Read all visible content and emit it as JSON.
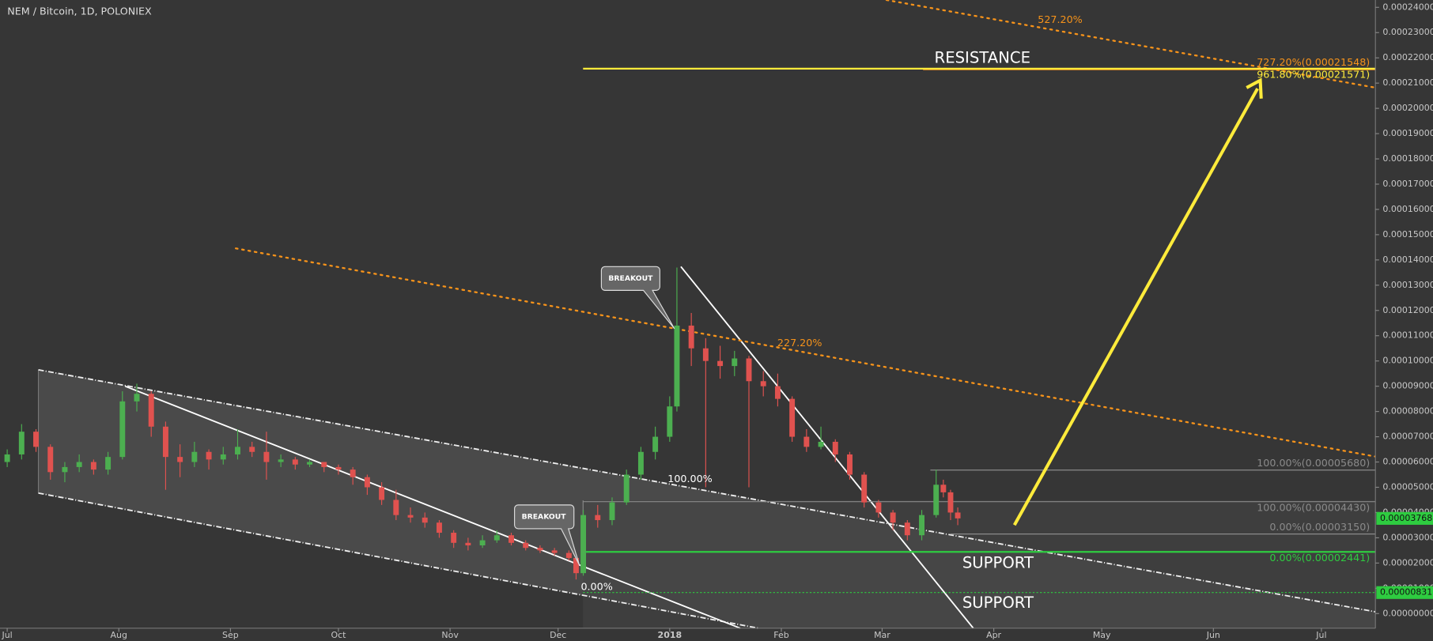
{
  "chart_data": {
    "type": "candlestick",
    "title": "NEM / Bitcoin, 1D, POLONIEX",
    "xlim": [
      -2,
      380
    ],
    "ylim": [
      -5.8e-06,
      0.0002429
    ],
    "xticks": [
      {
        "value": 0,
        "label": "Jul"
      },
      {
        "value": 31,
        "label": "Aug"
      },
      {
        "value": 62,
        "label": "Sep"
      },
      {
        "value": 92,
        "label": "Oct"
      },
      {
        "value": 123,
        "label": "Nov"
      },
      {
        "value": 153,
        "label": "Dec"
      },
      {
        "value": 184,
        "label": "2018"
      },
      {
        "value": 215,
        "label": "Feb"
      },
      {
        "value": 243,
        "label": "Mar"
      },
      {
        "value": 274,
        "label": "Apr"
      },
      {
        "value": 304,
        "label": "May"
      },
      {
        "value": 335,
        "label": "Jun"
      },
      {
        "value": 365,
        "label": "Jul"
      }
    ],
    "yticks": [
      {
        "value": 0,
        "label": "0.00000000"
      },
      {
        "value": 1e-05,
        "label": "0.00001000"
      },
      {
        "value": 2e-05,
        "label": "0.00002000"
      },
      {
        "value": 3e-05,
        "label": "0.00003000"
      },
      {
        "value": 4e-05,
        "label": "0.00004000"
      },
      {
        "value": 5e-05,
        "label": "0.00005000"
      },
      {
        "value": 6e-05,
        "label": "0.00006000"
      },
      {
        "value": 7e-05,
        "label": "0.00007000"
      },
      {
        "value": 8e-05,
        "label": "0.00008000"
      },
      {
        "value": 9e-05,
        "label": "0.00009000"
      },
      {
        "value": 0.0001,
        "label": "0.00010000"
      },
      {
        "value": 0.00011,
        "label": "0.00011000"
      },
      {
        "value": 0.00012,
        "label": "0.00012000"
      },
      {
        "value": 0.00013,
        "label": "0.00013000"
      },
      {
        "value": 0.00014,
        "label": "0.00014000"
      },
      {
        "value": 0.00015,
        "label": "0.00015000"
      },
      {
        "value": 0.00016,
        "label": "0.00016000"
      },
      {
        "value": 0.00017,
        "label": "0.00017000"
      },
      {
        "value": 0.00018,
        "label": "0.00018000"
      },
      {
        "value": 0.00019,
        "label": "0.00019000"
      },
      {
        "value": 0.0002,
        "label": "0.00020000"
      },
      {
        "value": 0.00021,
        "label": "0.00021000"
      },
      {
        "value": 0.00022,
        "label": "0.00022000"
      },
      {
        "value": 0.00023,
        "label": "0.00023000"
      },
      {
        "value": 0.00024,
        "label": "0.00024000"
      }
    ],
    "up_color": "#4caf50",
    "down_color": "#e0524f",
    "candles": {
      "x": [
        0,
        4,
        8,
        12,
        16,
        20,
        24,
        28,
        32,
        36,
        40,
        44,
        48,
        52,
        56,
        60,
        64,
        68,
        72,
        76,
        80,
        84,
        88,
        92,
        96,
        100,
        104,
        108,
        112,
        116,
        120,
        124,
        128,
        132,
        136,
        140,
        144,
        148,
        152,
        156,
        158,
        160,
        164,
        168,
        172,
        176,
        180,
        184,
        186,
        190,
        194,
        198,
        202,
        206,
        210,
        214,
        218,
        222,
        226,
        230,
        234,
        238,
        242,
        246,
        250,
        254,
        258,
        260,
        262,
        264
      ],
      "open": [
        6e-05,
        6.3e-05,
        7.2e-05,
        6.6e-05,
        5.6e-05,
        5.8e-05,
        6e-05,
        5.7e-05,
        6.2e-05,
        8.4e-05,
        8.7e-05,
        7.4e-05,
        6.2e-05,
        6e-05,
        6.4e-05,
        6.1e-05,
        6.3e-05,
        6.6e-05,
        6.4e-05,
        6e-05,
        6.1e-05,
        5.9e-05,
        6e-05,
        5.8e-05,
        5.7e-05,
        5.4e-05,
        5e-05,
        4.5e-05,
        3.9e-05,
        3.8e-05,
        3.6e-05,
        3.2e-05,
        2.8e-05,
        2.7e-05,
        2.9e-05,
        3.1e-05,
        2.8e-05,
        2.6e-05,
        2.5e-05,
        2.4e-05,
        2.2e-05,
        1.6e-05,
        3.9e-05,
        3.7e-05,
        4.4e-05,
        5.5e-05,
        6.4e-05,
        7e-05,
        8.2e-05,
        0.000114,
        0.000105,
        0.0001,
        9.8e-05,
        0.000101,
        9.2e-05,
        9e-05,
        8.5e-05,
        7e-05,
        6.6e-05,
        6.8e-05,
        6.3e-05,
        5.5e-05,
        4.4e-05,
        4e-05,
        3.6e-05,
        3.1e-05,
        3.9e-05,
        5.1e-05,
        4.8e-05,
        4e-05
      ],
      "high": [
        6.5e-05,
        7.5e-05,
        7.3e-05,
        6.7e-05,
        6e-05,
        6.3e-05,
        6.1e-05,
        6.4e-05,
        8.8e-05,
        9.1e-05,
        8.8e-05,
        7.6e-05,
        6.7e-05,
        6.8e-05,
        6.5e-05,
        6.6e-05,
        7.3e-05,
        6.8e-05,
        7.2e-05,
        6.3e-05,
        6.2e-05,
        6.1e-05,
        6e-05,
        5.9e-05,
        5.8e-05,
        5.5e-05,
        5.2e-05,
        4.9e-05,
        4.2e-05,
        4e-05,
        3.7e-05,
        3.3e-05,
        3e-05,
        3.1e-05,
        3.3e-05,
        3.2e-05,
        2.9e-05,
        2.7e-05,
        2.6e-05,
        2.5e-05,
        2.3e-05,
        4.1e-05,
        4.3e-05,
        4.6e-05,
        5.7e-05,
        6.6e-05,
        7.4e-05,
        8.6e-05,
        0.000137,
        0.000119,
        0.000109,
        0.000106,
        0.000104,
        0.000102,
        9.6e-05,
        9.5e-05,
        8.6e-05,
        7.3e-05,
        7.4e-05,
        6.9e-05,
        6.4e-05,
        5.6e-05,
        4.5e-05,
        4.1e-05,
        3.7e-05,
        4.1e-05,
        5.7e-05,
        5.3e-05,
        4.9e-05,
        4.2e-05
      ],
      "low": [
        5.8e-05,
        6.1e-05,
        6.4e-05,
        5.3e-05,
        5.2e-05,
        5.6e-05,
        5.5e-05,
        5.5e-05,
        6.1e-05,
        8e-05,
        7e-05,
        4.9e-05,
        5.4e-05,
        5.8e-05,
        5.7e-05,
        5.9e-05,
        6.1e-05,
        6.2e-05,
        5.3e-05,
        5.8e-05,
        5.7e-05,
        5.8e-05,
        5.6e-05,
        5.5e-05,
        5.1e-05,
        4.7e-05,
        4.3e-05,
        3.7e-05,
        3.6e-05,
        3.4e-05,
        3e-05,
        2.6e-05,
        2.5e-05,
        2.6e-05,
        2.8e-05,
        2.7e-05,
        2.5e-05,
        2.4e-05,
        2.3e-05,
        2.1e-05,
        1.35e-05,
        1.5e-05,
        3.4e-05,
        3.5e-05,
        4.3e-05,
        5.3e-05,
        6.1e-05,
        6.8e-05,
        8e-05,
        9.8e-05,
        5e-05,
        9.3e-05,
        9.4e-05,
        5e-05,
        8.6e-05,
        8.2e-05,
        6.8e-05,
        6.4e-05,
        6.5e-05,
        6e-05,
        5.3e-05,
        4.2e-05,
        3.8e-05,
        3.3e-05,
        2.9e-05,
        2.9e-05,
        3.8e-05,
        4.6e-05,
        3.7e-05,
        3.5e-05
      ],
      "close": [
        6.3e-05,
        7.2e-05,
        6.6e-05,
        5.6e-05,
        5.8e-05,
        6e-05,
        5.7e-05,
        6.2e-05,
        8.4e-05,
        8.7e-05,
        7.4e-05,
        6.2e-05,
        6e-05,
        6.4e-05,
        6.1e-05,
        6.3e-05,
        6.6e-05,
        6.4e-05,
        6e-05,
        6.1e-05,
        5.9e-05,
        6e-05,
        5.8e-05,
        5.7e-05,
        5.4e-05,
        5e-05,
        4.5e-05,
        3.9e-05,
        3.8e-05,
        3.6e-05,
        3.2e-05,
        2.8e-05,
        2.7e-05,
        2.9e-05,
        3.1e-05,
        2.8e-05,
        2.6e-05,
        2.5e-05,
        2.4e-05,
        2.2e-05,
        1.6e-05,
        3.9e-05,
        3.7e-05,
        4.4e-05,
        5.5e-05,
        6.4e-05,
        7e-05,
        8.2e-05,
        0.000114,
        0.000105,
        0.0001,
        9.8e-05,
        0.000101,
        9.2e-05,
        9e-05,
        8.5e-05,
        7e-05,
        6.6e-05,
        6.8e-05,
        6.3e-05,
        5.5e-05,
        4.4e-05,
        4e-05,
        3.6e-05,
        3.1e-05,
        3.9e-05,
        5.1e-05,
        4.8e-05,
        4e-05,
        3.768e-05
      ]
    },
    "levels": [
      {
        "value": 0.00021548,
        "label": "727.20%(0.00021548)",
        "color": "#f7931a"
      },
      {
        "value": 0.00021571,
        "label": "961.80%(0.00021571)",
        "color": "#ffeb3b"
      },
      {
        "value": 5.68e-05,
        "label": "100.00%(0.00005680)",
        "color": "#8a8a8a"
      },
      {
        "value": 4.43e-05,
        "label": "100.00%(0.00004430)",
        "color": "#8a8a8a"
      },
      {
        "value": 3.15e-05,
        "label": "0.00%(0.00003150)",
        "color": "#8a8a8a"
      },
      {
        "value": 2.441e-05,
        "label": "0.00%(0.00002441)",
        "color": "#2ecc40"
      }
    ],
    "price_tags": [
      {
        "value": 3.768e-05,
        "color": "#2ecc40",
        "guide": false
      },
      {
        "value": 8.31e-06,
        "color": "#2ecc40",
        "guide": true
      }
    ],
    "annotations": {
      "fib_top": "527.20%",
      "fib_mid": "227.20%",
      "fib_100": "100.00%",
      "fib_0": "0.00%",
      "resistance": "RESISTANCE",
      "support_1": "SUPPORT",
      "support_2": "SUPPORT",
      "breakout_1": "BREAKOUT",
      "breakout_2": "BREAKOUT"
    }
  }
}
